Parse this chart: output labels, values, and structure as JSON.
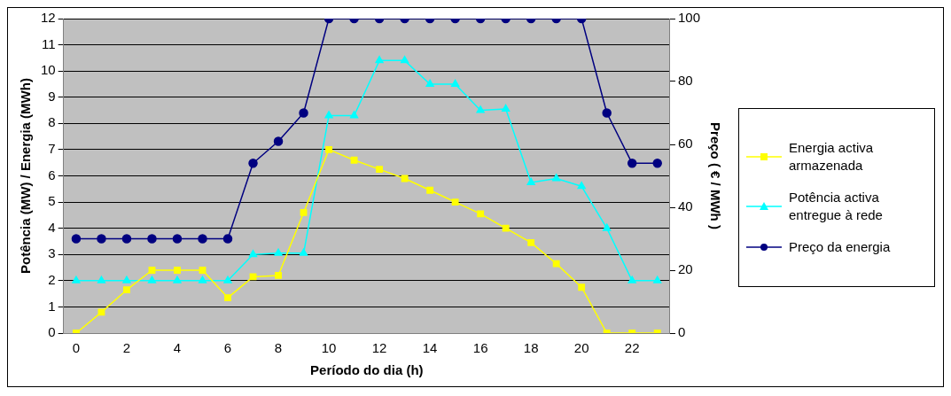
{
  "chart_data": {
    "type": "line",
    "xlabel": "Período do dia (h)",
    "ylabel": "Potência (MW) / Energia (MWh)",
    "y2label": "Preço ( € / MWh )",
    "categories": [
      "0",
      null,
      "2",
      null,
      "4",
      null,
      "6",
      null,
      "8",
      null,
      "10",
      null,
      "12",
      null,
      "14",
      null,
      "16",
      null,
      "18",
      null,
      "20",
      null,
      "22",
      null
    ],
    "series": [
      {
        "name": "Energia activa armazenada",
        "color": "#ffff00",
        "marker": "square",
        "values": [
          0,
          0.8,
          1.65,
          2.4,
          2.4,
          2.4,
          1.35,
          2.15,
          2.2,
          4.6,
          7.0,
          6.6,
          6.25,
          5.9,
          5.45,
          5.0,
          4.55,
          4.0,
          3.45,
          2.65,
          1.75,
          0,
          0,
          0
        ]
      },
      {
        "name": "Potência activa entregue à rede",
        "color": "#00ffff",
        "marker": "triangle",
        "values": [
          2,
          2,
          2,
          2,
          2,
          2,
          2,
          3.0,
          3.05,
          3.05,
          8.3,
          8.3,
          10.4,
          10.4,
          9.5,
          9.5,
          8.5,
          8.55,
          5.75,
          5.9,
          5.6,
          4.0,
          2,
          2
        ]
      },
      {
        "name": "Preço da energia",
        "color": "#000080",
        "marker": "circle",
        "axis": "y2",
        "values": [
          30,
          30,
          30,
          30,
          30,
          30,
          30,
          54,
          61,
          70,
          100,
          100,
          100,
          100,
          100,
          100,
          100,
          100,
          100,
          100,
          100,
          70,
          54,
          54
        ]
      }
    ],
    "ylim": [
      0,
      12
    ],
    "yticks": [
      0,
      1,
      2,
      3,
      4,
      5,
      6,
      7,
      8,
      9,
      10,
      11,
      12
    ],
    "y2lim": [
      0,
      100
    ],
    "y2ticks": [
      0,
      20,
      40,
      60,
      80,
      100
    ],
    "grid": "y",
    "legend": "right",
    "line_style": "solid"
  }
}
